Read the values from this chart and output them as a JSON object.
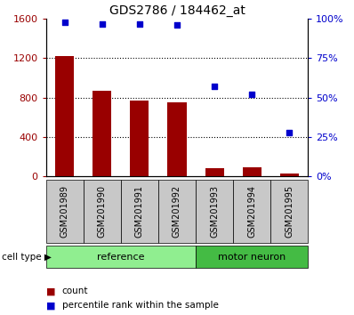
{
  "title": "GDS2786 / 184462_at",
  "samples": [
    "GSM201989",
    "GSM201990",
    "GSM201991",
    "GSM201992",
    "GSM201993",
    "GSM201994",
    "GSM201995"
  ],
  "counts": [
    1220,
    870,
    770,
    750,
    80,
    90,
    30
  ],
  "percentile_ranks": [
    98,
    97,
    97,
    96,
    57,
    52,
    28
  ],
  "bar_color": "#990000",
  "dot_color": "#0000CC",
  "left_yticks": [
    0,
    400,
    800,
    1200,
    1600
  ],
  "right_yticks": [
    0,
    25,
    50,
    75,
    100
  ],
  "right_yticklabels": [
    "0%",
    "25%",
    "50%",
    "75%",
    "100%"
  ],
  "ylim_left": [
    0,
    1600
  ],
  "ylim_right": [
    0,
    100
  ],
  "legend_count_label": "count",
  "legend_dot_label": "percentile rank within the sample",
  "cell_type_label": "cell type",
  "group_label_reference": "reference",
  "group_label_motor": "motor neuron",
  "ref_color": "#90EE90",
  "motor_color": "#44BB44",
  "label_bg_color": "#C8C8C8",
  "title_fontsize": 10,
  "tick_fontsize": 8,
  "label_fontsize": 7,
  "group_fontsize": 8
}
